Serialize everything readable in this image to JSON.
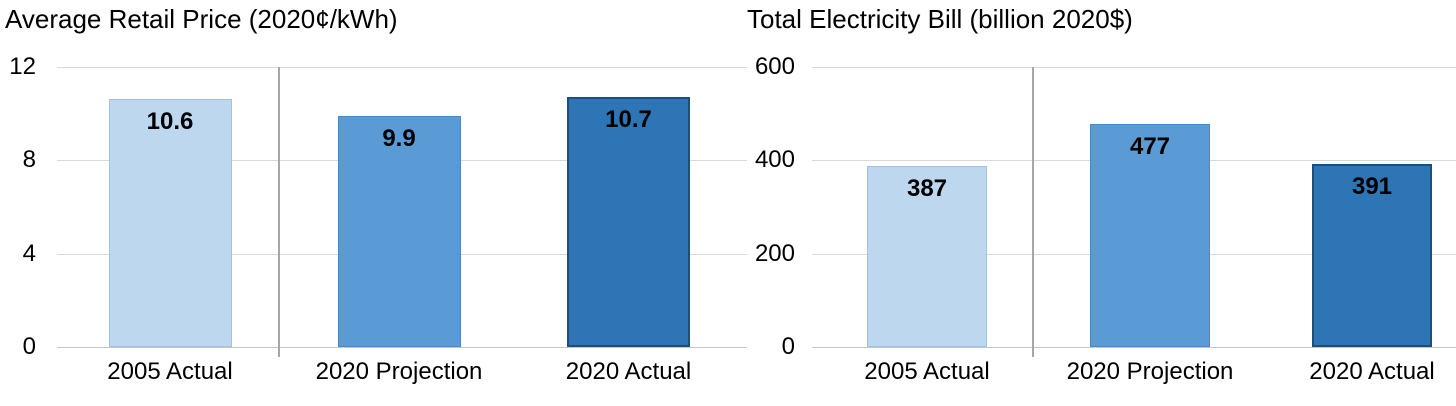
{
  "chart_data": [
    {
      "type": "bar",
      "title": "Average Retail Price (2020¢/kWh)",
      "categories": [
        "2005 Actual",
        "2020 Projection",
        "2020 Actual"
      ],
      "values": [
        10.6,
        9.9,
        10.7
      ],
      "value_labels": [
        "10.6",
        "9.9",
        "10.7"
      ],
      "ylim": [
        0,
        12
      ],
      "yticks": [
        0,
        4,
        8,
        12
      ],
      "ytick_labels": [
        "0",
        "4",
        "8",
        "12"
      ],
      "grid": true,
      "legend": false,
      "bar_fill_colors": [
        "#BDD7EE",
        "#5B9BD5",
        "#2E75B6"
      ],
      "bar_border_colors": [
        "#9DC3E6",
        "#4A89C4",
        "#1F4E79"
      ]
    },
    {
      "type": "bar",
      "title": "Total Electricity Bill (billion 2020$)",
      "categories": [
        "2005 Actual",
        "2020 Projection",
        "2020 Actual"
      ],
      "values": [
        387,
        477,
        391
      ],
      "value_labels": [
        "387",
        "477",
        "391"
      ],
      "ylim": [
        0,
        600
      ],
      "yticks": [
        0,
        200,
        400,
        600
      ],
      "ytick_labels": [
        "0",
        "200",
        "400",
        "600"
      ],
      "grid": true,
      "legend": false,
      "bar_fill_colors": [
        "#BDD7EE",
        "#5B9BD5",
        "#2E75B6"
      ],
      "bar_border_colors": [
        "#9DC3E6",
        "#4A89C4",
        "#1F4E79"
      ]
    }
  ],
  "colors": {
    "background": "#FFFFFF",
    "text": "#000000",
    "gridline": "#D9D9D9",
    "axis_line": "#C6C6C6",
    "separator": "#A6A6A6"
  }
}
